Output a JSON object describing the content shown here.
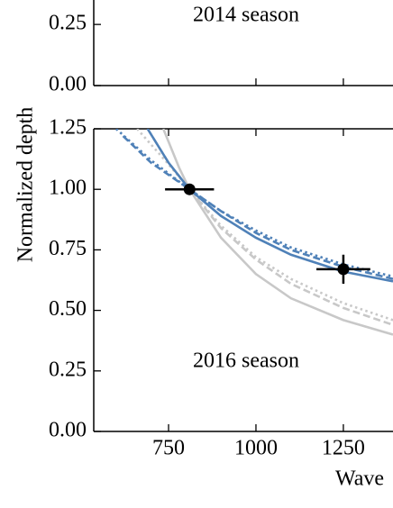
{
  "chart_data": [
    {
      "type": "line",
      "annotation": "2014 season",
      "xlim": [
        536,
        1392
      ],
      "ylim": [
        0,
        0.35
      ],
      "yticks": [
        0.0,
        0.25
      ],
      "yticks_labels": [
        "0.00",
        "0.25"
      ]
    },
    {
      "type": "line",
      "annotation": "2016 season",
      "ylabel": "Normalized depth",
      "xlabel": "Wave",
      "xlim": [
        536,
        1392
      ],
      "ylim": [
        0,
        1.25
      ],
      "xticks": [
        750,
        1000,
        1250
      ],
      "yticks": [
        {
          "value": 0,
          "label": "0.00"
        },
        {
          "value": 0.25,
          "label": "0.25"
        },
        {
          "value": 0.5,
          "label": "0.50"
        },
        {
          "value": 0.75,
          "label": "0.75"
        },
        {
          "value": 1,
          "label": "1.00"
        },
        {
          "value": 1.25,
          "label": "1.25"
        }
      ],
      "series": [
        {
          "color": "#c8c8c8",
          "style": "solid",
          "x": [
            735,
            780,
            810,
            900,
            1000,
            1100,
            1250,
            1392
          ],
          "values": [
            1.25,
            1.09,
            1.0,
            0.8,
            0.65,
            0.55,
            0.46,
            0.4
          ]
        },
        {
          "color": "#c8c8c8",
          "style": "dashed",
          "x": [
            690,
            750,
            810,
            900,
            1000,
            1100,
            1250,
            1392
          ],
          "values": [
            1.25,
            1.11,
            1.0,
            0.84,
            0.71,
            0.61,
            0.51,
            0.44
          ]
        },
        {
          "color": "#c8c8c8",
          "style": "dotted",
          "x": [
            660,
            740,
            810,
            900,
            1000,
            1100,
            1250,
            1392
          ],
          "values": [
            1.25,
            1.12,
            1.0,
            0.85,
            0.72,
            0.63,
            0.53,
            0.46
          ]
        },
        {
          "color": "#4f81b8",
          "style": "solid",
          "x": [
            690,
            750,
            810,
            900,
            1000,
            1100,
            1250,
            1392
          ],
          "values": [
            1.25,
            1.11,
            1.0,
            0.89,
            0.8,
            0.73,
            0.66,
            0.62
          ]
        },
        {
          "color": "#4f81b8",
          "style": "dashed",
          "x": [
            620,
            700,
            810,
            900,
            1000,
            1100,
            1250,
            1392
          ],
          "values": [
            1.22,
            1.11,
            1.0,
            0.91,
            0.82,
            0.75,
            0.68,
            0.63
          ]
        },
        {
          "color": "#4f81b8",
          "style": "dotted",
          "x": [
            600,
            700,
            810,
            900,
            1000,
            1100,
            1250,
            1392
          ],
          "values": [
            1.25,
            1.12,
            1.0,
            0.91,
            0.83,
            0.76,
            0.69,
            0.64
          ]
        }
      ],
      "points": {
        "color": "#000000",
        "x": [
          810,
          1250
        ],
        "values": [
          1.0,
          0.67
        ],
        "xerr": [
          70,
          77
        ],
        "yerr": [
          0.0,
          0.06
        ]
      }
    }
  ]
}
